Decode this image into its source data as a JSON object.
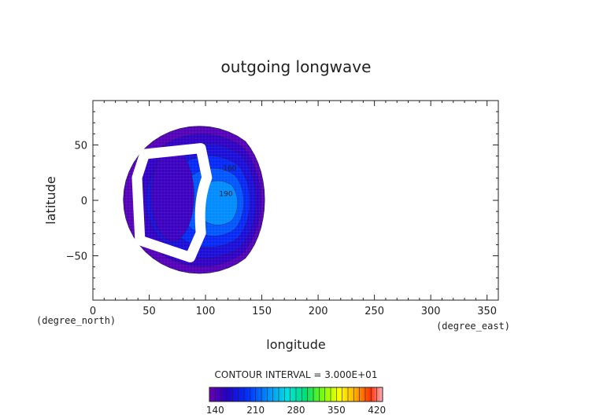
{
  "chart_data": {
    "type": "heatmap",
    "title": "outgoing longwave",
    "xlabel": "longitude",
    "ylabel": "latitude",
    "x_unit": "(degree_east)",
    "y_unit": "(degree_north)",
    "xlim": [
      0,
      360
    ],
    "ylim": [
      -90,
      90
    ],
    "x_ticks": [
      0,
      50,
      100,
      150,
      200,
      250,
      300,
      350
    ],
    "y_ticks": [
      -50,
      0,
      50
    ],
    "contour_interval_text": "CONTOUR INTERVAL = 3.000E+01",
    "colorbar": {
      "range": [
        130,
        430
      ],
      "labels": [
        140,
        210,
        280,
        350,
        420
      ]
    },
    "data_extent": {
      "lon_range": [
        27,
        162
      ],
      "lat_range": [
        -66,
        67
      ]
    },
    "regions": [
      {
        "name": "outer band",
        "value_range": [
          140,
          170
        ]
      },
      {
        "name": "western interior",
        "value_range": [
          150,
          190
        ]
      },
      {
        "name": "eastern interior",
        "value_range": [
          190,
          230
        ]
      },
      {
        "name": "missing-data ring",
        "value_range": null
      }
    ],
    "annotations": [
      "160",
      "190"
    ]
  }
}
